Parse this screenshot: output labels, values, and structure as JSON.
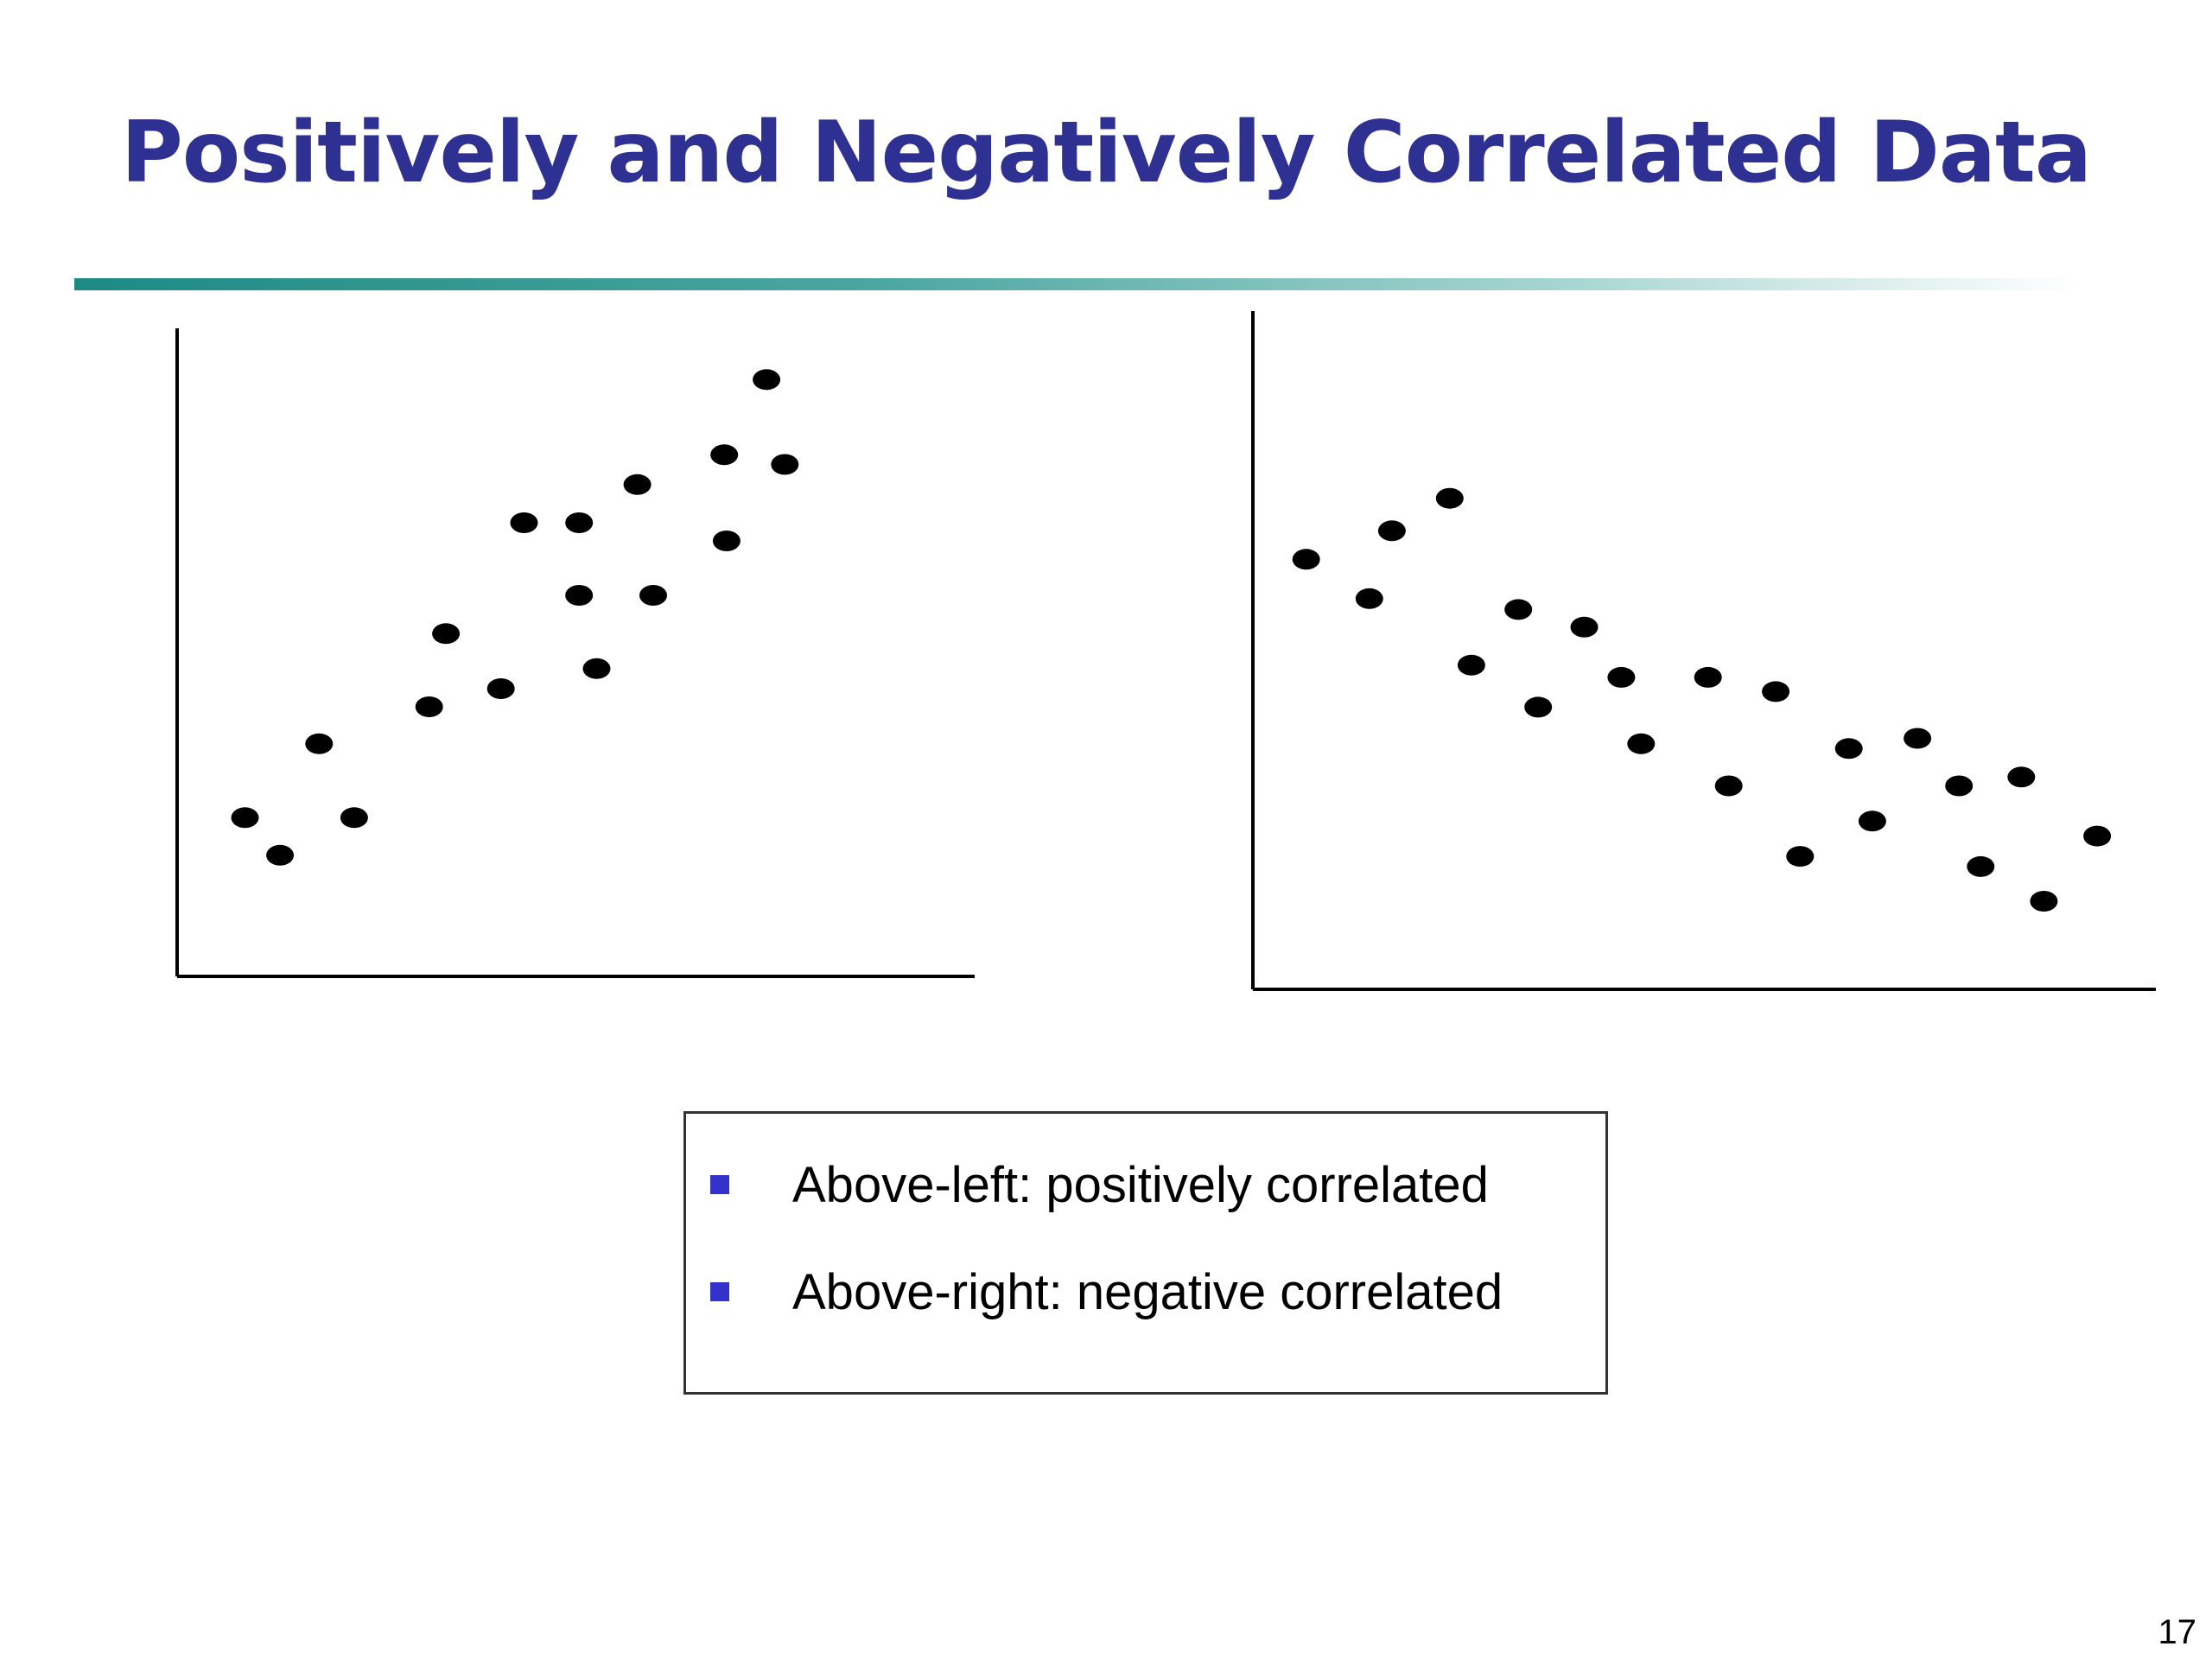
{
  "slide": {
    "title": "Positively and Negatively Correlated Data",
    "page_number": "17",
    "title_color": "#2E3192",
    "rule_color": "#1E8A84"
  },
  "legend": {
    "bullet_color": "#3333CC",
    "items": [
      {
        "text": "Above-left: positively correlated"
      },
      {
        "text": "Above-right: negative correlated"
      }
    ]
  },
  "chart_data": [
    {
      "type": "scatter",
      "title": "",
      "xlabel": "",
      "ylabel": "",
      "xlim": [
        0,
        100
      ],
      "ylim": [
        0,
        100
      ],
      "grid": false,
      "ticks": false,
      "marker_color": "#000000",
      "points": [
        {
          "x": 8.5,
          "y": 24.5
        },
        {
          "x": 12.9,
          "y": 18.7
        },
        {
          "x": 17.8,
          "y": 35.9
        },
        {
          "x": 22.2,
          "y": 24.5
        },
        {
          "x": 31.6,
          "y": 41.6
        },
        {
          "x": 33.7,
          "y": 52.9
        },
        {
          "x": 40.6,
          "y": 44.4
        },
        {
          "x": 43.5,
          "y": 70.0
        },
        {
          "x": 50.4,
          "y": 70.0
        },
        {
          "x": 50.4,
          "y": 58.8
        },
        {
          "x": 52.6,
          "y": 47.5
        },
        {
          "x": 57.7,
          "y": 75.9
        },
        {
          "x": 59.7,
          "y": 58.8
        },
        {
          "x": 68.6,
          "y": 80.5
        },
        {
          "x": 68.9,
          "y": 67.2
        },
        {
          "x": 73.9,
          "y": 92.1
        },
        {
          "x": 76.2,
          "y": 79.0
        }
      ]
    },
    {
      "type": "scatter",
      "title": "",
      "xlabel": "",
      "ylabel": "",
      "xlim": [
        0,
        100
      ],
      "ylim": [
        0,
        100
      ],
      "grid": false,
      "ticks": false,
      "marker_color": "#000000",
      "points": [
        {
          "x": 5.9,
          "y": 63.4
        },
        {
          "x": 12.9,
          "y": 57.6
        },
        {
          "x": 15.4,
          "y": 67.6
        },
        {
          "x": 21.8,
          "y": 72.4
        },
        {
          "x": 24.2,
          "y": 47.8
        },
        {
          "x": 29.4,
          "y": 56.0
        },
        {
          "x": 31.6,
          "y": 41.6
        },
        {
          "x": 36.7,
          "y": 53.4
        },
        {
          "x": 40.8,
          "y": 46.0
        },
        {
          "x": 43.0,
          "y": 36.2
        },
        {
          "x": 50.4,
          "y": 46.0
        },
        {
          "x": 52.7,
          "y": 30.0
        },
        {
          "x": 57.9,
          "y": 43.9
        },
        {
          "x": 60.6,
          "y": 19.6
        },
        {
          "x": 66.0,
          "y": 35.5
        },
        {
          "x": 68.6,
          "y": 24.8
        },
        {
          "x": 73.6,
          "y": 37.0
        },
        {
          "x": 78.2,
          "y": 30.0
        },
        {
          "x": 80.6,
          "y": 18.1
        },
        {
          "x": 85.1,
          "y": 31.3
        },
        {
          "x": 87.6,
          "y": 13.0
        },
        {
          "x": 93.5,
          "y": 22.6
        }
      ]
    }
  ]
}
